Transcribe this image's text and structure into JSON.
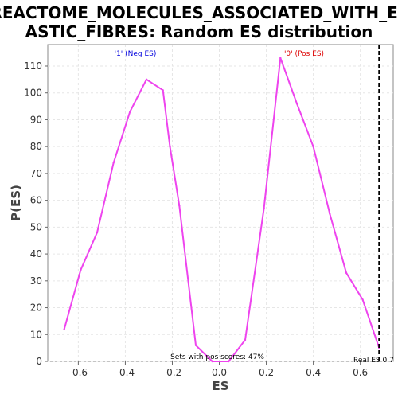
{
  "chart_data": {
    "type": "line",
    "title_lines": [
      "REACTOME_MOLECULES_ASSOCIATED_WITH_EL",
      "ASTIC_FIBRES: Random ES distribution"
    ],
    "xlabel": "ES",
    "ylabel": "P(ES)",
    "xlim": [
      -0.73,
      0.74
    ],
    "ylim": [
      0,
      118
    ],
    "x_ticks": [
      "-0.6",
      "-0.4",
      "-0.2",
      "0.0",
      "0.2",
      "0.4",
      "0.6"
    ],
    "x_tick_values": [
      -0.6,
      -0.4,
      -0.2,
      0.0,
      0.2,
      0.4,
      0.6
    ],
    "y_ticks": [
      "0",
      "10",
      "20",
      "30",
      "40",
      "50",
      "60",
      "70",
      "80",
      "90",
      "100",
      "110"
    ],
    "y_tick_values": [
      0,
      10,
      20,
      30,
      40,
      50,
      60,
      70,
      80,
      90,
      100,
      110
    ],
    "grid": true,
    "series": [
      {
        "color": "#ee44ee",
        "x": [
          -0.66,
          -0.59,
          -0.52,
          -0.45,
          -0.38,
          -0.31,
          -0.24,
          -0.21,
          -0.17,
          -0.1,
          -0.03,
          0.04,
          0.11,
          0.19,
          0.26,
          0.33,
          0.4,
          0.47,
          0.54,
          0.61,
          0.68
        ],
        "y": [
          12,
          34,
          48,
          74,
          93,
          105,
          101,
          80,
          58,
          6,
          0,
          0,
          8,
          57,
          113,
          96,
          80,
          55,
          33,
          23,
          5
        ]
      }
    ],
    "real_es": {
      "x": 0.68,
      "color": "#000000",
      "label": "Real ES 0.7"
    },
    "annotations": [
      {
        "text": "'1' (Neg ES)",
        "color": "#0000dd"
      },
      {
        "text": "'0' (Pos ES)",
        "color": "#dd0000"
      },
      {
        "text": "Sets with pos scores: 47%",
        "color": "#000000"
      }
    ]
  }
}
